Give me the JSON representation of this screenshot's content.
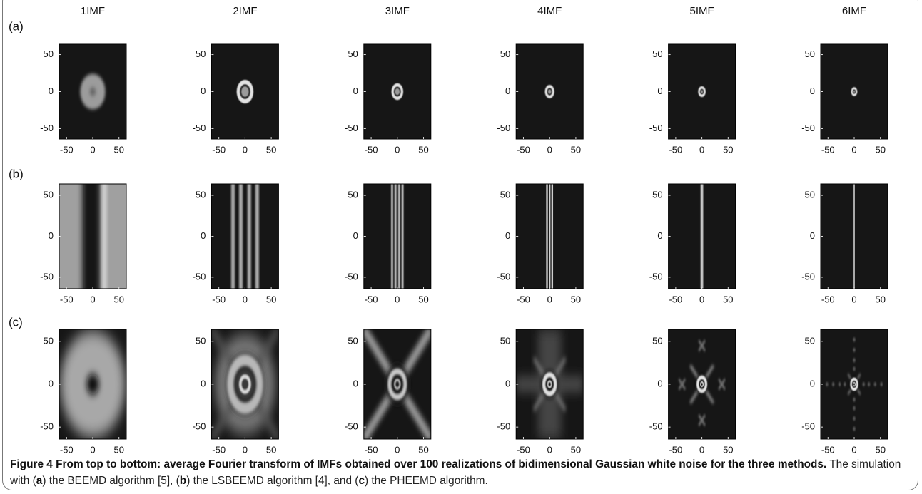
{
  "columns": [
    "1IMF",
    "2IMF",
    "3IMF",
    "4IMF",
    "5IMF",
    "6IMF"
  ],
  "rows": [
    "(a)",
    "(b)",
    "(c)"
  ],
  "axes": {
    "xlim": [
      -64,
      64
    ],
    "ylim": [
      -64,
      64
    ],
    "xticks": [
      -50,
      0,
      50
    ],
    "yticks": [
      50,
      0,
      -50
    ]
  },
  "caption": {
    "label": "Figure 4",
    "title": "From top to bottom: average Fourier transform of IMFs obtained over 100 realizations of bidimensional Gaussian white noise for the three methods.",
    "body": [
      {
        "text": "The simulation with (",
        "bold": false
      },
      {
        "text": "a",
        "bold": true
      },
      {
        "text": ") the BEEMD algorithm [5], (",
        "bold": false
      },
      {
        "text": "b",
        "bold": true
      },
      {
        "text": ") the LSBEEMD algorithm [4], and (",
        "bold": false
      },
      {
        "text": "c",
        "bold": true
      },
      {
        "text": ") the PHEEMD algorithm.",
        "bold": false
      }
    ]
  }
}
